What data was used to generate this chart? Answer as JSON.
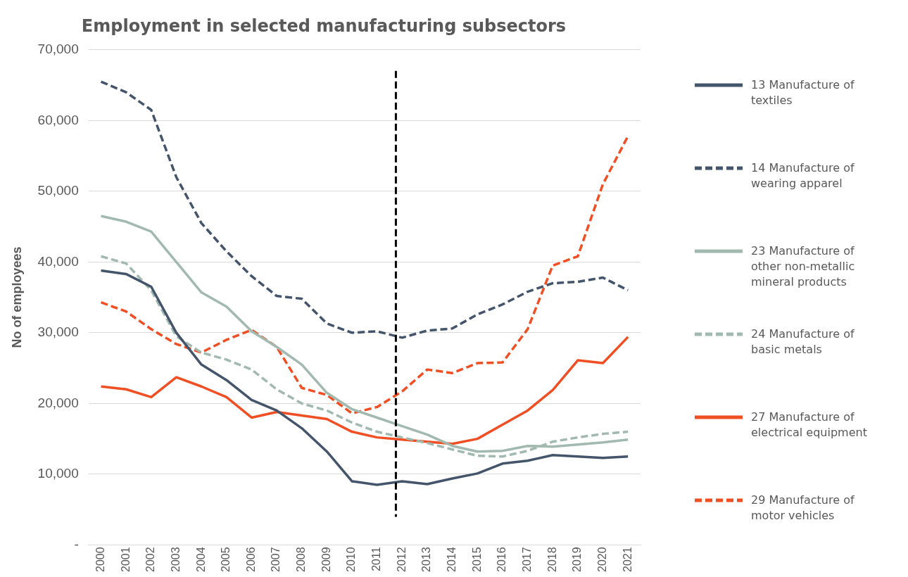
{
  "chart_data": {
    "type": "line",
    "title": "Employment in selected manufacturing subsectors",
    "ylabel": "No of employees",
    "x": [
      2000,
      2001,
      2002,
      2003,
      2004,
      2005,
      2006,
      2007,
      2008,
      2009,
      2010,
      2011,
      2012,
      2013,
      2014,
      2015,
      2016,
      2017,
      2018,
      2019,
      2020,
      2021
    ],
    "xlim": [
      1999.5,
      2021.5
    ],
    "xticks": [
      2000,
      2001,
      2002,
      2003,
      2004,
      2005,
      2006,
      2007,
      2008,
      2009,
      2010,
      2011,
      2012,
      2013,
      2014,
      2015,
      2016,
      2017,
      2018,
      2019,
      2020,
      2021
    ],
    "ylim": [
      0,
      70000
    ],
    "yticks": [
      {
        "value": 0,
        "label": "-"
      },
      {
        "value": 10000,
        "label": "10,000"
      },
      {
        "value": 20000,
        "label": "20,000"
      },
      {
        "value": 30000,
        "label": "30,000"
      },
      {
        "value": 40000,
        "label": "40,000"
      },
      {
        "value": 50000,
        "label": "50,000"
      },
      {
        "value": 60000,
        "label": "60,000"
      },
      {
        "value": 70000,
        "label": "70,000"
      }
    ],
    "grid": "y",
    "legend": "right",
    "marker": "none",
    "ref_lines": [
      {
        "axis": "x",
        "value": 2011.75,
        "color": "#000000",
        "line_style": "dashed"
      }
    ],
    "series": [
      {
        "name": "13 Manufacture of textiles",
        "color": "#44546a",
        "line_style": "solid",
        "values": [
          38800,
          38300,
          36500,
          30000,
          25500,
          23300,
          20500,
          19000,
          16500,
          13200,
          9000,
          8500,
          9000,
          8600,
          9400,
          10100,
          11500,
          11900,
          12700,
          12500,
          12300,
          12500
        ]
      },
      {
        "name": "14 Manufacture of wearing apparel",
        "color": "#44546a",
        "line_style": "dashed",
        "values": [
          65500,
          64000,
          61500,
          52000,
          45500,
          41500,
          38000,
          35200,
          34800,
          31300,
          30000,
          30200,
          29300,
          30300,
          30600,
          32600,
          34000,
          35800,
          37000,
          37200,
          37800,
          36000
        ]
      },
      {
        "name": "23 Manufacture of other non-metallic mineral products",
        "color": "#a2b9b0",
        "line_style": "solid",
        "values": [
          46500,
          45700,
          44300,
          40000,
          35700,
          33700,
          30200,
          28000,
          25500,
          21500,
          19200,
          18000,
          16800,
          15600,
          14000,
          13200,
          13300,
          14000,
          13900,
          14200,
          14500,
          14900
        ]
      },
      {
        "name": "24 Manufacture of basic metals",
        "color": "#a2b9b0",
        "line_style": "dashed",
        "values": [
          40800,
          39800,
          36000,
          29500,
          27200,
          26200,
          24800,
          22000,
          20000,
          19000,
          17300,
          16000,
          15200,
          14400,
          13500,
          12600,
          12500,
          13300,
          14600,
          15200,
          15700,
          16000
        ]
      },
      {
        "name": "27 Manufacture of electrical equipment",
        "color": "#f04e23",
        "line_style": "solid",
        "values": [
          22400,
          22000,
          20900,
          23700,
          22400,
          20900,
          18000,
          18800,
          18300,
          17800,
          16000,
          15200,
          14900,
          14600,
          14300,
          15000,
          17000,
          19000,
          21900,
          26100,
          25700,
          29400
        ]
      },
      {
        "name": "29 Manufacture of motor vehicles",
        "color": "#f04e23",
        "line_style": "dashed",
        "values": [
          34300,
          33000,
          30500,
          28400,
          27200,
          29000,
          30400,
          28000,
          22200,
          21200,
          18600,
          19500,
          21700,
          24800,
          24300,
          25700,
          25800,
          30500,
          39500,
          40800,
          51000,
          57800
        ]
      }
    ]
  }
}
